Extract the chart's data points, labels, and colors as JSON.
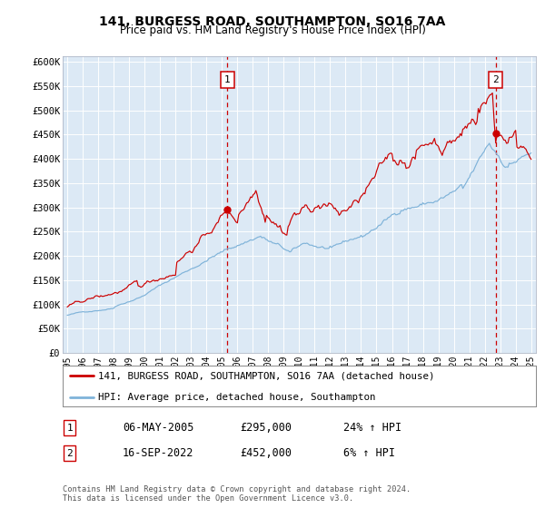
{
  "title1": "141, BURGESS ROAD, SOUTHAMPTON, SO16 7AA",
  "title2": "Price paid vs. HM Land Registry's House Price Index (HPI)",
  "ylabel_ticks": [
    "£0",
    "£50K",
    "£100K",
    "£150K",
    "£200K",
    "£250K",
    "£300K",
    "£350K",
    "£400K",
    "£450K",
    "£500K",
    "£550K",
    "£600K"
  ],
  "ytick_values": [
    0,
    50000,
    100000,
    150000,
    200000,
    250000,
    300000,
    350000,
    400000,
    450000,
    500000,
    550000,
    600000
  ],
  "ylim": [
    0,
    612000
  ],
  "xlim_start": 1994.7,
  "xlim_end": 2025.3,
  "bg_color": "#dce9f5",
  "red_color": "#cc0000",
  "blue_color": "#7fb3d9",
  "sale1_x": 2005.35,
  "sale1_y": 295000,
  "sale2_x": 2022.71,
  "sale2_y": 452000,
  "legend_line1": "141, BURGESS ROAD, SOUTHAMPTON, SO16 7AA (detached house)",
  "legend_line2": "HPI: Average price, detached house, Southampton",
  "annotation1_num": "1",
  "annotation1_date": "06-MAY-2005",
  "annotation1_price": "£295,000",
  "annotation1_hpi": "24% ↑ HPI",
  "annotation2_num": "2",
  "annotation2_date": "16-SEP-2022",
  "annotation2_price": "£452,000",
  "annotation2_hpi": "6% ↑ HPI",
  "footer": "Contains HM Land Registry data © Crown copyright and database right 2024.\nThis data is licensed under the Open Government Licence v3.0."
}
